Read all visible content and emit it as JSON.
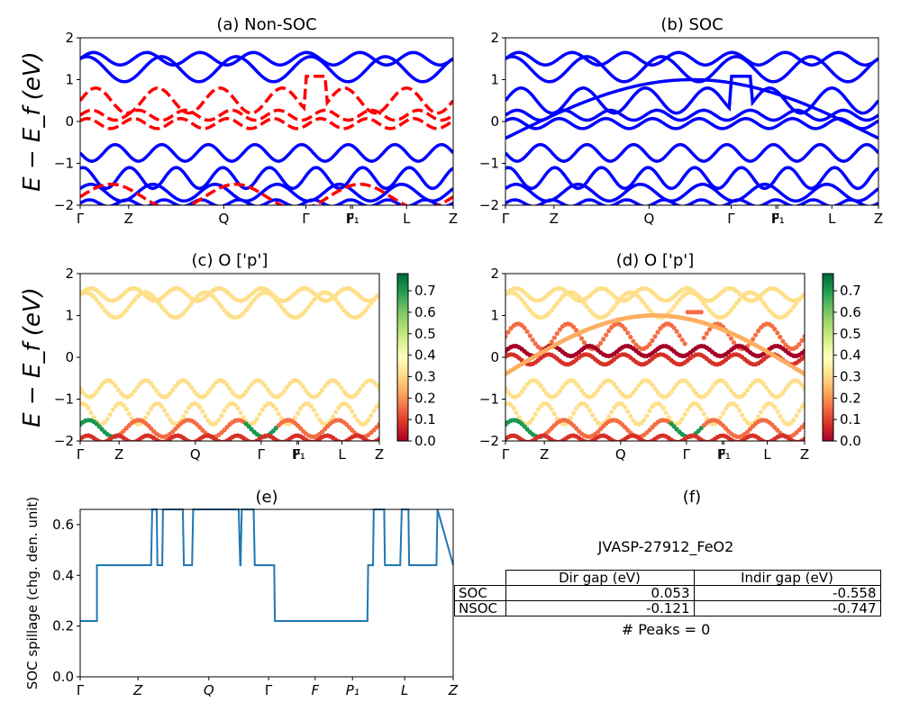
{
  "chart_data": [
    {
      "type": "line",
      "panel": "a",
      "title": "(a) Non-SOC",
      "ylabel": "E − E_f (eV)",
      "ylim": [
        -2,
        2
      ],
      "yticks": [
        "−2",
        "−1",
        "0",
        "1",
        "2"
      ],
      "kpath_labels": [
        "Γ",
        "Z",
        "Q",
        "Γ",
        "F",
        "P₁",
        "L",
        "Z"
      ],
      "series_colors": {
        "up": "#0000ff",
        "down": "#ff0000"
      },
      "line_styles": {
        "up": "solid",
        "down": "dashed"
      }
    },
    {
      "type": "line",
      "panel": "b",
      "title": "(b) SOC",
      "ylim": [
        -2,
        2
      ],
      "yticks": [
        "−2",
        "−1",
        "0",
        "1",
        "2"
      ],
      "kpath_labels": [
        "Γ",
        "Z",
        "Q",
        "Γ",
        "F",
        "P₁",
        "L",
        "Z"
      ],
      "series_colors": {
        "bands": "#0000ff"
      }
    },
    {
      "type": "scatter",
      "panel": "c",
      "title": "(c)  O ['p']",
      "ylabel": "E − E_f (eV)",
      "ylim": [
        -2,
        2
      ],
      "yticks": [
        "−2",
        "−1",
        "0",
        "1",
        "2"
      ],
      "kpath_labels": [
        "Γ",
        "Z",
        "Q",
        "Γ",
        "F",
        "P₁",
        "L",
        "Z"
      ],
      "colorbar_ticks": [
        "0.0",
        "0.1",
        "0.2",
        "0.3",
        "0.4",
        "0.5",
        "0.6",
        "0.7"
      ],
      "colorbar_range": [
        0,
        0.78
      ]
    },
    {
      "type": "scatter",
      "panel": "d",
      "title": "(d) O ['p']",
      "ylim": [
        -2,
        2
      ],
      "yticks": [
        "−2",
        "−1",
        "0",
        "1",
        "2"
      ],
      "kpath_labels": [
        "Γ",
        "Z",
        "Q",
        "Γ",
        "F",
        "P₁",
        "L",
        "Z"
      ],
      "colorbar_ticks": [
        "0.0",
        "0.1",
        "0.2",
        "0.3",
        "0.4",
        "0.5",
        "0.6",
        "0.7"
      ],
      "colorbar_range": [
        0,
        0.78
      ]
    },
    {
      "type": "line",
      "panel": "e",
      "title": "(e)",
      "ylabel": "SOC spillage (chg. den. unit)",
      "ylim": [
        0,
        0.66
      ],
      "yticks": [
        "0.0",
        "0.2",
        "0.4",
        "0.6"
      ],
      "kpath_labels": [
        "Γ",
        "Z",
        "Q",
        "Γ",
        "F",
        "P₁",
        "L",
        "Z"
      ],
      "series_colors": {
        "spillage": "#1f77b4"
      },
      "series": [
        {
          "x": [
            0,
            0.045,
            0.045,
            0.19,
            0.193,
            0.205,
            0.207,
            0.22,
            0.222,
            0.275,
            0.278,
            0.3,
            0.303,
            0.425,
            0.429,
            0.43,
            0.433,
            0.465,
            0.468,
            0.52,
            0.522,
            0.77,
            0.772,
            0.785,
            0.787,
            0.815,
            0.817,
            0.858,
            0.862,
            0.88,
            0.882,
            0.955,
            0.958,
            1
          ],
          "y": [
            0.22,
            0.22,
            0.44,
            0.44,
            0.66,
            0.66,
            0.44,
            0.44,
            0.66,
            0.66,
            0.44,
            0.44,
            0.66,
            0.66,
            0.44,
            0.44,
            0.66,
            0.66,
            0.44,
            0.44,
            0.22,
            0.22,
            0.44,
            0.44,
            0.66,
            0.66,
            0.44,
            0.44,
            0.66,
            0.66,
            0.44,
            0.44,
            0.66,
            0.44
          ]
        }
      ]
    }
  ],
  "panel_f": {
    "title": "(f)",
    "material": "JVASP-27912_FeO2",
    "headers": [
      "Dir gap (eV)",
      "Indir gap (eV)"
    ],
    "rows": [
      {
        "label": "SOC",
        "dir": "0.053",
        "indir": "-0.558"
      },
      {
        "label": "NSOC",
        "dir": "-0.121",
        "indir": "-0.747"
      }
    ],
    "peaks": "# Peaks = 0"
  }
}
